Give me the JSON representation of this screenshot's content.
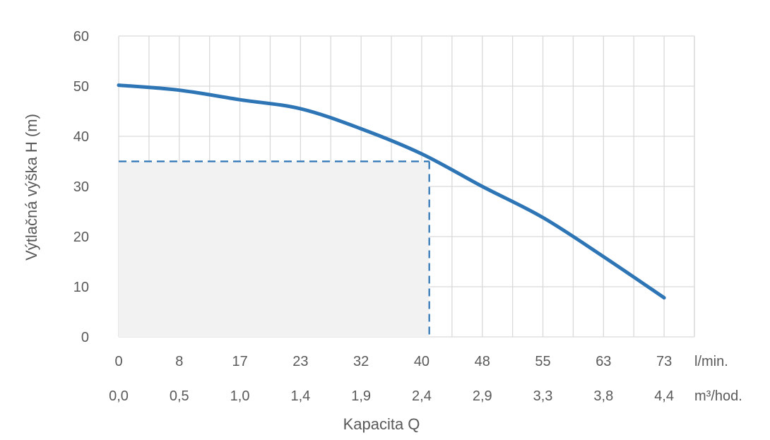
{
  "chart_data": {
    "type": "line",
    "title": "",
    "ylabel": "Výtlačná výška H (m)",
    "xlabel": "Kapacita Q",
    "ylim": [
      0,
      60
    ],
    "yticks": [
      0,
      10,
      20,
      30,
      40,
      50,
      60
    ],
    "xlim": [
      0,
      73
    ],
    "x_categories_lmin": [
      "0",
      "8",
      "17",
      "23",
      "32",
      "40",
      "48",
      "55",
      "63",
      "73"
    ],
    "x_categories_m3h": [
      "0,0",
      "0,5",
      "1,0",
      "1,4",
      "1,9",
      "2,4",
      "2,9",
      "3,3",
      "3,8",
      "4,4"
    ],
    "x_unit_lmin": "l/min.",
    "x_unit_m3h": "m³/hod.",
    "grid": true,
    "series": [
      {
        "color": "#2E75B6",
        "points": [
          [
            0,
            50.2
          ],
          [
            8,
            49.2
          ],
          [
            17,
            47.3
          ],
          [
            23,
            45.5
          ],
          [
            32,
            41.5
          ],
          [
            40,
            36.5
          ],
          [
            48,
            30.0
          ],
          [
            55,
            23.8
          ],
          [
            63,
            16.0
          ],
          [
            73,
            7.8
          ]
        ]
      }
    ],
    "operating_point": {
      "x": 41,
      "y": 35
    },
    "colors": {
      "line": "#2E75B6",
      "grid": "#D9D9D9",
      "shaded_area": "#F2F2F2",
      "dashed": "#2E75B6"
    }
  }
}
